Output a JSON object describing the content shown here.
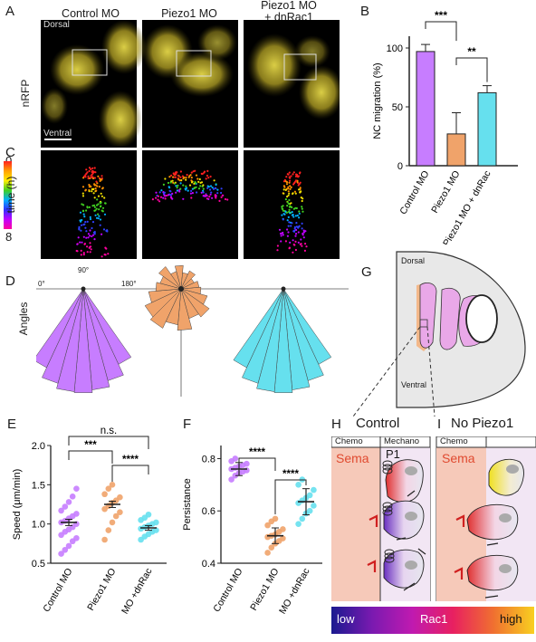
{
  "panels": {
    "a": "A",
    "b": "B",
    "c": "C",
    "d": "D",
    "e": "E",
    "f": "F",
    "g": "G",
    "h": "H",
    "i": "I"
  },
  "columns": [
    "Control MO",
    "Piezo1 MO",
    "Piezo1 MO\n+ dnRac1"
  ],
  "microscopy": {
    "dorsal": "Dorsal",
    "ventral": "Ventral",
    "channel": "nRFP",
    "time_label": "time (h)",
    "time_start": "0",
    "time_end": "8"
  },
  "angles": {
    "row_label": "Angles",
    "a0": "0°",
    "a90": "90°",
    "a180": "180°"
  },
  "schematic": {
    "dorsal": "Dorsal",
    "ventral": "Ventral",
    "control_title": "Control",
    "nopiezo_title": "No Piezo1",
    "chemo": "Chemo",
    "mechano": "Mechano",
    "sema": "Sema",
    "p1": "P1",
    "rac_low": "low",
    "rac_mid": "Rac1",
    "rac_high": "high"
  },
  "colors": {
    "control": "#c77dff",
    "piezo": "#f0a36a",
    "dnrac": "#66e0ee"
  },
  "chart_data": [
    {
      "type": "bar",
      "panel": "B",
      "categories": [
        "Control MO",
        "Piezo1 MO",
        "Piezo1 MO + dnRac"
      ],
      "values": [
        97,
        27,
        62
      ],
      "errors": [
        6,
        18,
        6
      ],
      "ylabel": "NC migration (%)",
      "yticks": [
        0,
        50,
        100
      ],
      "ylim": [
        0,
        110
      ],
      "significance": [
        {
          "from": 0,
          "to": 1,
          "label": "***"
        },
        {
          "from": 1,
          "to": 2,
          "label": "**"
        }
      ]
    },
    {
      "type": "scatter",
      "panel": "E",
      "categories": [
        "Control MO",
        "Piezo1 MO",
        "Piezo1 MO +dnRac"
      ],
      "means": [
        1.02,
        1.25,
        0.95
      ],
      "sems": [
        0.04,
        0.04,
        0.03
      ],
      "points": [
        [
          0.62,
          0.67,
          0.72,
          0.78,
          0.82,
          0.86,
          0.9,
          0.93,
          0.96,
          1.0,
          1.02,
          1.04,
          1.07,
          1.1,
          1.13,
          1.17,
          1.22,
          1.28,
          1.35,
          1.45
        ],
        [
          0.8,
          0.92,
          1.02,
          1.1,
          1.15,
          1.19,
          1.23,
          1.27,
          1.3,
          1.34,
          1.38,
          1.45,
          1.5
        ],
        [
          0.8,
          0.84,
          0.87,
          0.9,
          0.92,
          0.94,
          0.96,
          0.98,
          1.0,
          1.02,
          1.05,
          1.08,
          1.12
        ]
      ],
      "ylabel": "Speed (μm/min)",
      "yticks": [
        0.5,
        1.0,
        1.5,
        2.0
      ],
      "ylim": [
        0.5,
        2.0
      ],
      "significance": [
        {
          "from": 0,
          "to": 2,
          "label": "n.s."
        },
        {
          "from": 0,
          "to": 1,
          "label": "***"
        },
        {
          "from": 1,
          "to": 2,
          "label": "****"
        }
      ]
    },
    {
      "type": "scatter",
      "panel": "F",
      "categories": [
        "Control MO",
        "Piezo1 MO",
        "Piezo1 MO +dnRac"
      ],
      "means": [
        0.76,
        0.505,
        0.635
      ],
      "sds": [
        0.025,
        0.03,
        0.05
      ],
      "points": [
        [
          0.72,
          0.735,
          0.745,
          0.75,
          0.755,
          0.76,
          0.765,
          0.77,
          0.775,
          0.78,
          0.79,
          0.8
        ],
        [
          0.44,
          0.46,
          0.475,
          0.485,
          0.495,
          0.5,
          0.505,
          0.51,
          0.52,
          0.53,
          0.545,
          0.56,
          0.57
        ],
        [
          0.55,
          0.57,
          0.59,
          0.6,
          0.62,
          0.63,
          0.64,
          0.65,
          0.66,
          0.68,
          0.7,
          0.72
        ]
      ],
      "ylabel": "Persistance",
      "yticks": [
        0.4,
        0.6,
        0.8
      ],
      "ylim": [
        0.4,
        0.85
      ],
      "significance": [
        {
          "from": 0,
          "to": 1,
          "label": "****"
        },
        {
          "from": 1,
          "to": 2,
          "label": "****"
        }
      ]
    }
  ]
}
